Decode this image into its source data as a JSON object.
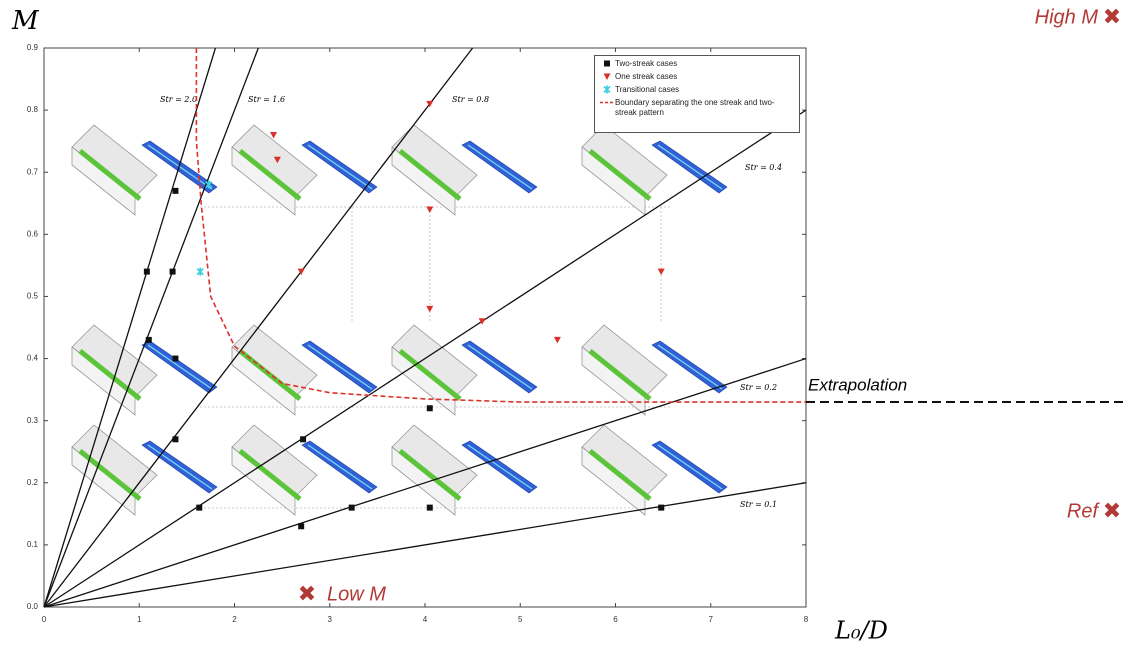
{
  "chart_data": {
    "type": "scatter",
    "y_label": "M",
    "x_label": "L₀/D",
    "xlim": [
      0,
      8
    ],
    "ylim": [
      0,
      0.9
    ],
    "xticks": [
      0,
      1,
      2,
      3,
      4,
      5,
      6,
      7,
      8
    ],
    "yticks": [
      {
        "value": 0,
        "label": "0.0"
      },
      {
        "value": 0.1,
        "label": "0.1"
      },
      {
        "value": 0.2,
        "label": "0.2"
      },
      {
        "value": 0.3,
        "label": "0.3"
      },
      {
        "value": 0.4,
        "label": "0.4"
      },
      {
        "value": 0.5,
        "label": "0.5"
      },
      {
        "value": 0.6,
        "label": "0.6"
      },
      {
        "value": 0.7,
        "label": "0.7"
      },
      {
        "value": 0.8,
        "label": "0.8"
      },
      {
        "value": 0.9,
        "label": "0.9"
      }
    ],
    "series": [
      {
        "name": "Two-streak cases",
        "color": "#111111",
        "marker": "square",
        "x": [
          1.38,
          1.08,
          1.35,
          1.1,
          1.38,
          1.38,
          2.72,
          1.63,
          2.7,
          3.23,
          4.05,
          4.05,
          6.48
        ],
        "y": [
          0.67,
          0.54,
          0.54,
          0.43,
          0.4,
          0.27,
          0.27,
          0.16,
          0.13,
          0.16,
          0.16,
          0.32,
          0.16
        ]
      },
      {
        "name": "One streak cases",
        "color": "#d9302a",
        "marker": "triangle",
        "x": [
          2.41,
          2.45,
          4.05,
          4.05,
          4.05,
          2.7,
          6.48,
          5.39,
          4.6
        ],
        "y": [
          0.76,
          0.72,
          0.81,
          0.64,
          0.48,
          0.54,
          0.54,
          0.43,
          0.46
        ]
      },
      {
        "name": "Transitional cases",
        "color": "#3fd0e0",
        "marker": "star",
        "x": [
          1.64,
          1.73
        ],
        "y": [
          0.54,
          0.68
        ]
      }
    ],
    "boundary": {
      "name": "Boundary separating the one streak and two-streak pattern",
      "color": "#e0302a",
      "x": [
        1.6,
        1.6,
        1.65,
        1.75,
        2.0,
        2.5,
        3.0,
        4.0,
        5.0,
        6.0,
        8.0
      ],
      "y": [
        0.9,
        0.75,
        0.65,
        0.5,
        0.42,
        0.36,
        0.345,
        0.335,
        0.33,
        0.33,
        0.33
      ]
    },
    "rays": [
      {
        "label": "Str = 2.0",
        "x": [
          0,
          1.8
        ],
        "y": [
          0,
          0.9
        ]
      },
      {
        "label": "Str = 1.6",
        "x": [
          0,
          2.25
        ],
        "y": [
          0,
          0.9
        ]
      },
      {
        "label": "Str = 0.8",
        "x": [
          0,
          4.5
        ],
        "y": [
          0,
          0.9
        ]
      },
      {
        "label": "Str = 0.4",
        "x": [
          0,
          8
        ],
        "y": [
          0,
          0.8
        ]
      },
      {
        "label": "Str = 0.2",
        "x": [
          0,
          8
        ],
        "y": [
          0,
          0.4
        ]
      },
      {
        "label": "Str = 0.1",
        "x": [
          0,
          8
        ],
        "y": [
          0,
          0.2
        ]
      }
    ],
    "extrapolation": {
      "label": "Extrapolation",
      "value": 0.33
    },
    "annotations": [
      "High M",
      "Ref",
      "Low M"
    ]
  }
}
